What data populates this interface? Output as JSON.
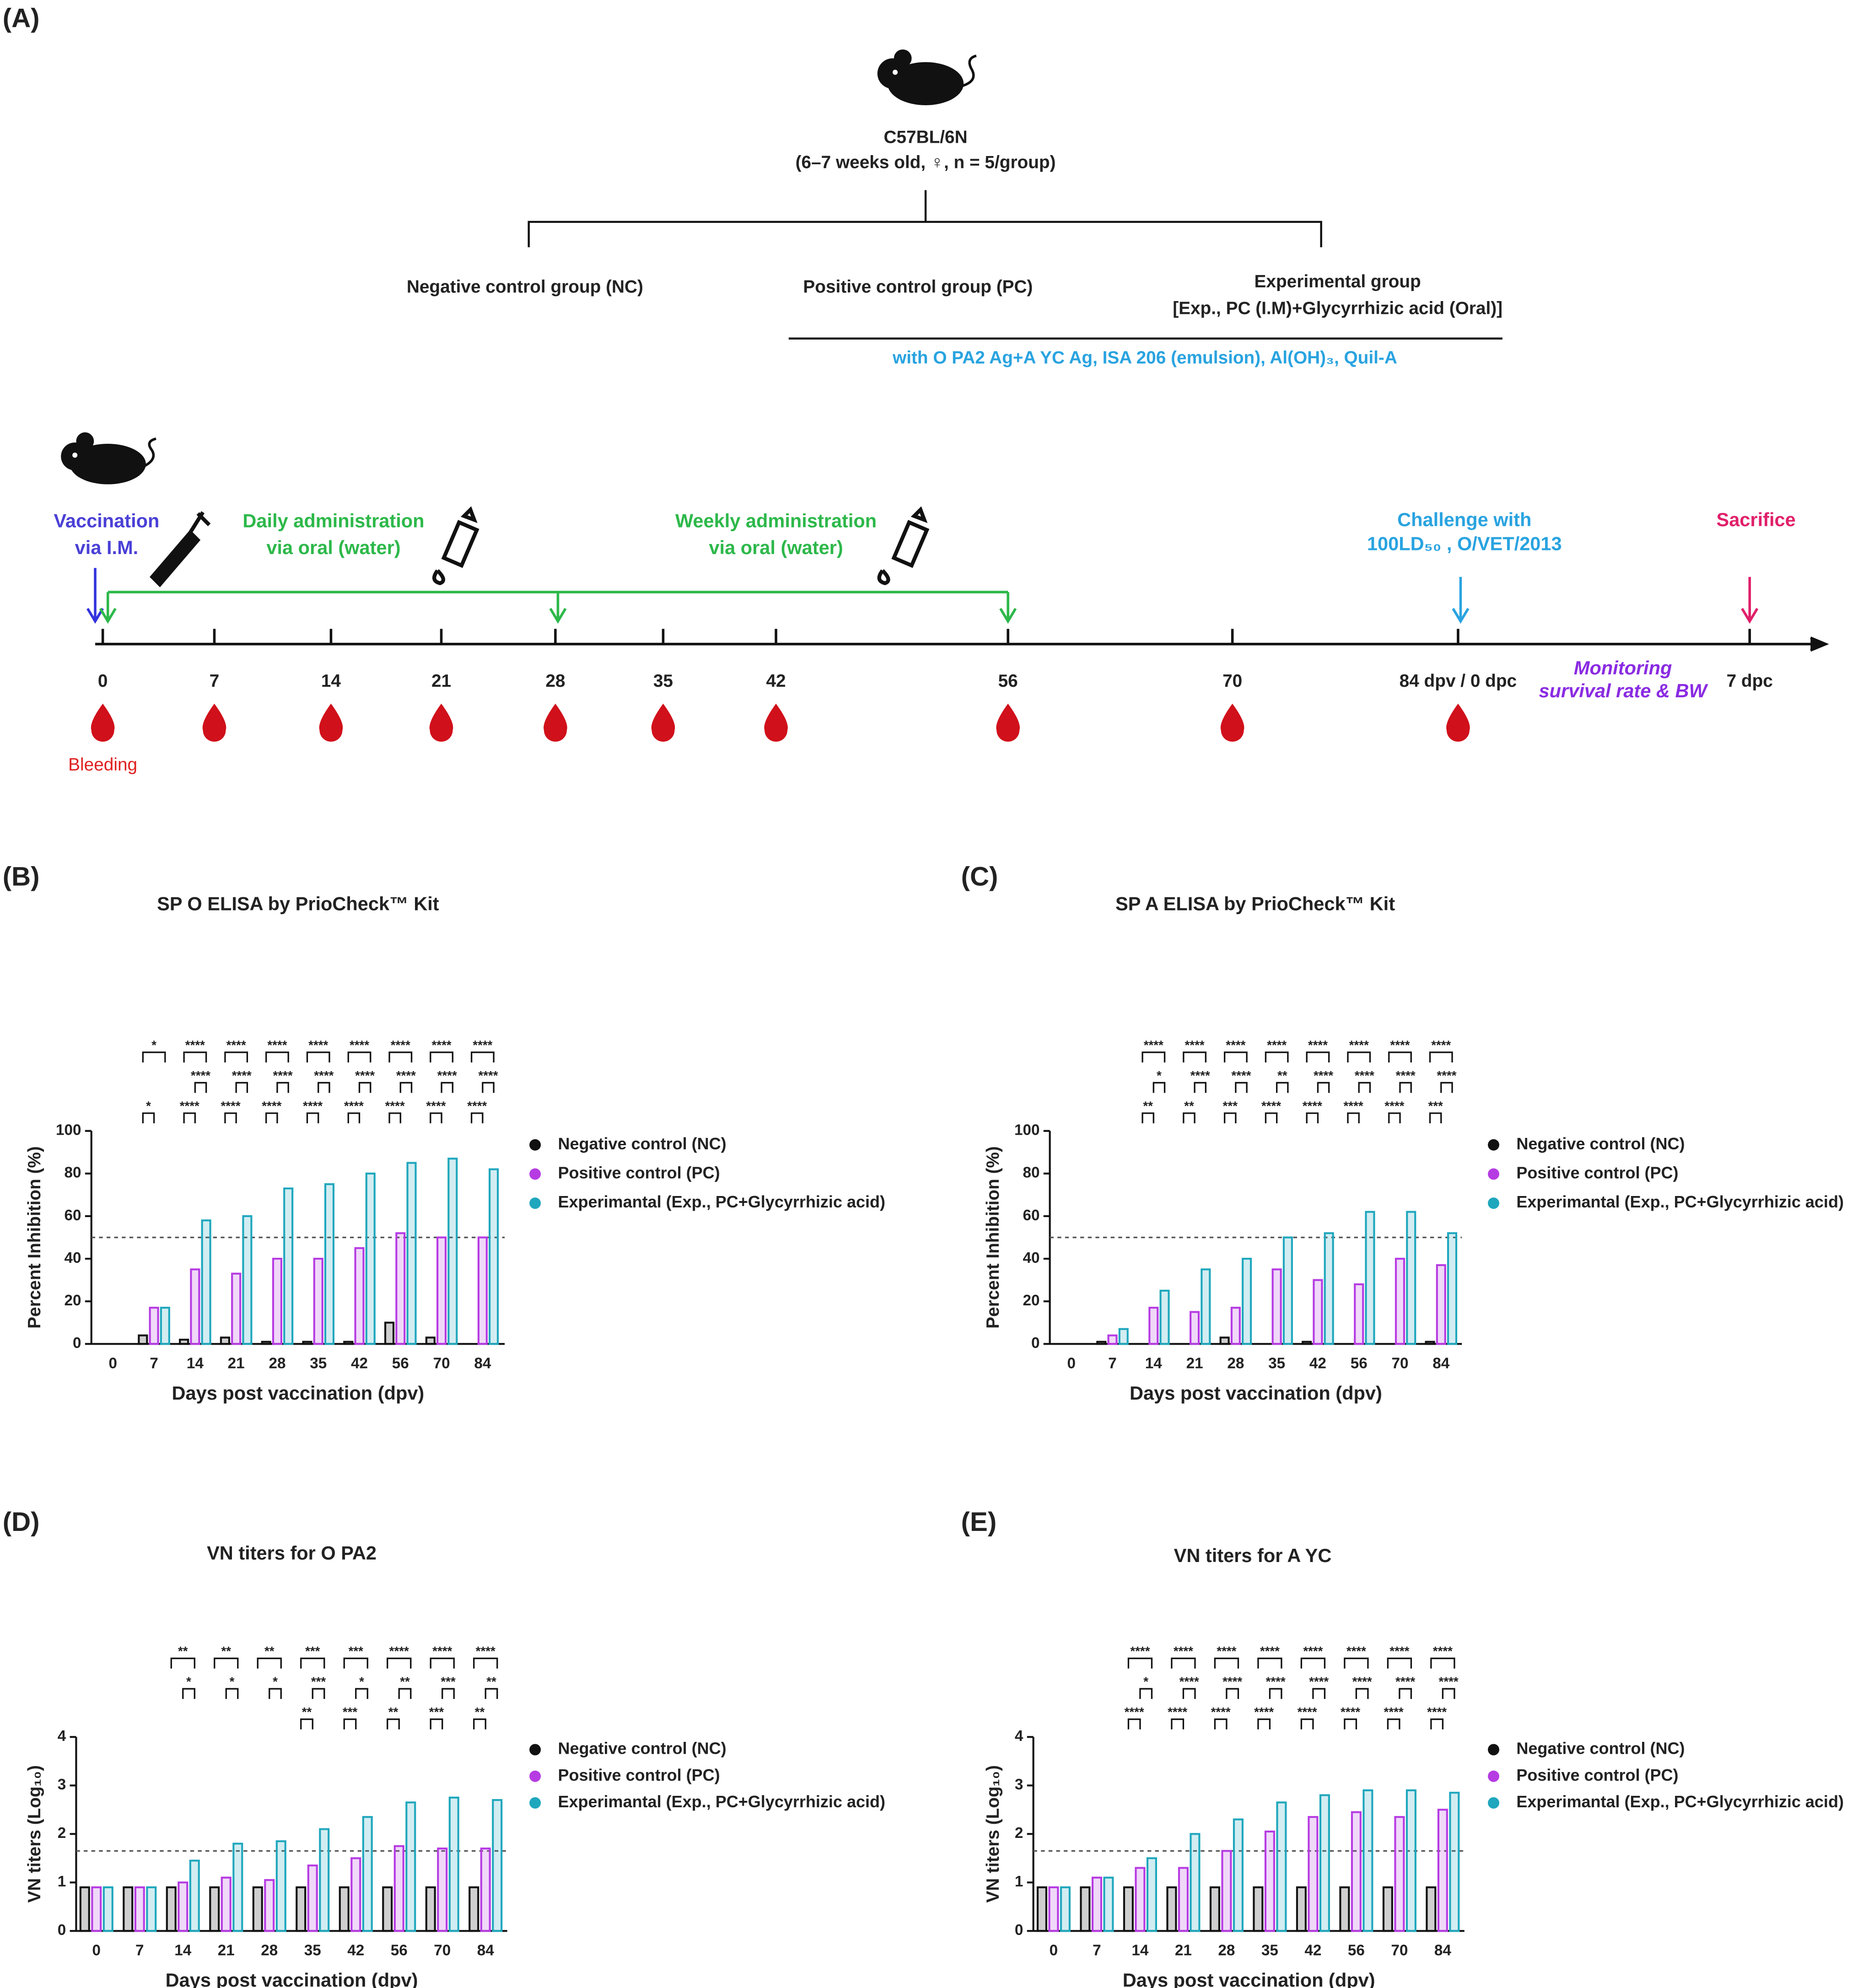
{
  "panel_a": {
    "label": "(A)",
    "strain": "C57BL/6N",
    "strain_detail": "(6–7 weeks old, ♀, n = 5/group)",
    "groups": [
      "Negative control group (NC)",
      "Positive control group (PC)",
      "Experimental group"
    ],
    "experimental_detail": "[Exp., PC (I.M)+Glycyrrhizic acid (Oral)]",
    "vaccine": "with O PA2 Ag+A YC Ag, ISA 206 (emulsion), Al(OH)₃, Quil-A",
    "events": {
      "vaccination": [
        "Vaccination",
        "via I.M."
      ],
      "daily": [
        "Daily administration",
        "via oral (water)"
      ],
      "weekly": [
        "Weekly administration",
        "via oral (water)"
      ],
      "challenge": [
        "Challenge with",
        "100LD₅₀ , O/VET/2013"
      ],
      "sacrifice": "Sacrifice",
      "monitoring": [
        "Monitoring",
        "survival rate & BW"
      ]
    },
    "timeline": [
      "0",
      "7",
      "14",
      "21",
      "28",
      "35",
      "42",
      "56",
      "70",
      "84 dpv / 0 dpc",
      "7 dpc"
    ],
    "bleeding": "Bleeding"
  },
  "chart_data": [
    {
      "type": "bar",
      "label": "(B)",
      "title": "SP O ELISA by PrioCheck™ Kit",
      "x_label": "Days post vaccination (dpv)",
      "y_label": "Percent Inhibition (%)",
      "categories": [
        "0",
        "7",
        "14",
        "21",
        "28",
        "35",
        "42",
        "56",
        "70",
        "84"
      ],
      "series": [
        {
          "name": "Negative control (NC)",
          "color": "#111111",
          "values": [
            0,
            4,
            2,
            3,
            1,
            1,
            1,
            10,
            3,
            0
          ]
        },
        {
          "name": "Positive control (PC)",
          "color": "#b63be3",
          "values": [
            0,
            17,
            35,
            33,
            40,
            40,
            45,
            52,
            50,
            50
          ]
        },
        {
          "name": "Experimantal (Exp., PC+Glycyrrhizic acid)",
          "color": "#1fa7bd",
          "values": [
            0,
            17,
            58,
            60,
            73,
            75,
            80,
            85,
            87,
            82
          ]
        }
      ],
      "ylim": [
        0,
        100
      ],
      "yticks": [
        0,
        20,
        40,
        60,
        80,
        100
      ],
      "threshold": 50,
      "legend": "right",
      "significance": {
        "nc_pc": [
          null,
          "*",
          "****",
          "****",
          "****",
          "****",
          "****",
          "****",
          "****",
          "****"
        ],
        "pc_exp": [
          null,
          null,
          "****",
          "****",
          "****",
          "****",
          "****",
          "****",
          "****",
          "****"
        ],
        "nc_exp": [
          null,
          "*",
          "****",
          "****",
          "****",
          "****",
          "****",
          "****",
          "****",
          "****"
        ]
      }
    },
    {
      "type": "bar",
      "label": "(C)",
      "title": "SP A ELISA by PrioCheck™ Kit",
      "x_label": "Days post vaccination (dpv)",
      "y_label": "Percent Inhibition (%)",
      "categories": [
        "0",
        "7",
        "14",
        "21",
        "28",
        "35",
        "42",
        "56",
        "70",
        "84"
      ],
      "series": [
        {
          "name": "Negative control (NC)",
          "color": "#111111",
          "values": [
            0,
            1,
            0,
            0,
            3,
            0,
            1,
            0,
            0,
            1
          ]
        },
        {
          "name": "Positive control (PC)",
          "color": "#b63be3",
          "values": [
            0,
            4,
            17,
            15,
            17,
            35,
            30,
            28,
            40,
            37
          ]
        },
        {
          "name": "Experimantal (Exp., PC+Glycyrrhizic acid)",
          "color": "#1fa7bd",
          "values": [
            0,
            7,
            25,
            35,
            40,
            50,
            52,
            62,
            62,
            52
          ]
        }
      ],
      "ylim": [
        0,
        100
      ],
      "yticks": [
        0,
        20,
        40,
        60,
        80,
        100
      ],
      "threshold": 50,
      "legend": "right",
      "significance": {
        "nc_pc": [
          null,
          null,
          "**",
          "**",
          "***",
          "****",
          "****",
          "****",
          "****",
          "***"
        ],
        "pc_exp": [
          null,
          null,
          "*",
          "****",
          "****",
          "**",
          "****",
          "****",
          "****",
          "****"
        ],
        "nc_exp": [
          null,
          null,
          "****",
          "****",
          "****",
          "****",
          "****",
          "****",
          "****",
          "****"
        ]
      }
    },
    {
      "type": "bar",
      "label": "(D)",
      "title": "VN titers for O PA2",
      "x_label": "Days post vaccination (dpv)",
      "y_label": "VN titers (Log₁₀)",
      "categories": [
        "0",
        "7",
        "14",
        "21",
        "28",
        "35",
        "42",
        "56",
        "70",
        "84"
      ],
      "series": [
        {
          "name": "Negative control (NC)",
          "color": "#111111",
          "values": [
            0.9,
            0.9,
            0.9,
            0.9,
            0.9,
            0.9,
            0.9,
            0.9,
            0.9,
            0.9
          ]
        },
        {
          "name": "Positive control (PC)",
          "color": "#b63be3",
          "values": [
            0.9,
            0.9,
            1.0,
            1.1,
            1.05,
            1.35,
            1.5,
            1.75,
            1.7,
            1.7
          ]
        },
        {
          "name": "Experimantal (Exp., PC+Glycyrrhizic acid)",
          "color": "#1fa7bd",
          "values": [
            0.9,
            0.9,
            1.45,
            1.8,
            1.85,
            2.1,
            2.35,
            2.65,
            2.75,
            2.7
          ]
        }
      ],
      "ylim": [
        0,
        4
      ],
      "yticks": [
        0,
        1,
        2,
        3,
        4
      ],
      "threshold": 1.65,
      "legend": "right",
      "significance": {
        "nc_pc": [
          null,
          null,
          null,
          null,
          null,
          "**",
          "***",
          "**",
          "***",
          "**"
        ],
        "pc_exp": [
          null,
          null,
          "*",
          "*",
          "*",
          "***",
          "*",
          "**",
          "***",
          "**"
        ],
        "nc_exp": [
          null,
          null,
          "**",
          "**",
          "**",
          "***",
          "***",
          "****",
          "****",
          "****"
        ]
      }
    },
    {
      "type": "bar",
      "label": "(E)",
      "title": "VN titers for A YC",
      "x_label": "Days post vaccination (dpv)",
      "y_label": "VN titers (Log₁₀)",
      "categories": [
        "0",
        "7",
        "14",
        "21",
        "28",
        "35",
        "42",
        "56",
        "70",
        "84"
      ],
      "series": [
        {
          "name": "Negative control (NC)",
          "color": "#111111",
          "values": [
            0.9,
            0.9,
            0.9,
            0.9,
            0.9,
            0.9,
            0.9,
            0.9,
            0.9,
            0.9
          ]
        },
        {
          "name": "Positive control (PC)",
          "color": "#b63be3",
          "values": [
            0.9,
            1.1,
            1.3,
            1.3,
            1.65,
            2.05,
            2.35,
            2.45,
            2.35,
            2.5
          ]
        },
        {
          "name": "Experimantal (Exp., PC+Glycyrrhizic acid)",
          "color": "#1fa7bd",
          "values": [
            0.9,
            1.1,
            1.5,
            2.0,
            2.3,
            2.65,
            2.8,
            2.9,
            2.9,
            2.85
          ]
        }
      ],
      "ylim": [
        0,
        4
      ],
      "yticks": [
        0,
        1,
        2,
        3,
        4
      ],
      "threshold": 1.65,
      "legend": "right",
      "significance": {
        "nc_pc": [
          null,
          null,
          "****",
          "****",
          "****",
          "****",
          "****",
          "****",
          "****",
          "****"
        ],
        "pc_exp": [
          null,
          null,
          "*",
          "****",
          "****",
          "****",
          "****",
          "****",
          "****",
          "****"
        ],
        "nc_exp": [
          null,
          null,
          "****",
          "****",
          "****",
          "****",
          "****",
          "****",
          "****",
          "****"
        ]
      }
    }
  ]
}
